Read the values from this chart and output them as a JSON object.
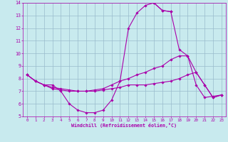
{
  "background_color": "#c8eaee",
  "line_color": "#aa00aa",
  "grid_color": "#99bbcc",
  "xlabel": "Windchill (Refroidissement éolien,°C)",
  "xlim_min": -0.5,
  "xlim_max": 23.5,
  "ylim_min": 5,
  "ylim_max": 14,
  "yticks": [
    5,
    6,
    7,
    8,
    9,
    10,
    11,
    12,
    13,
    14
  ],
  "xticks": [
    0,
    1,
    2,
    3,
    4,
    5,
    6,
    7,
    8,
    9,
    10,
    11,
    12,
    13,
    14,
    15,
    16,
    17,
    18,
    19,
    20,
    21,
    22,
    23
  ],
  "series": [
    {
      "x": [
        0,
        1,
        2,
        3,
        4,
        5,
        6,
        7,
        8,
        9,
        10,
        11,
        12,
        13,
        14,
        15,
        16,
        17,
        18,
        19,
        20,
        21,
        22,
        23
      ],
      "y": [
        8.3,
        7.8,
        7.5,
        7.5,
        7.0,
        6.0,
        5.5,
        5.3,
        5.3,
        5.5,
        6.3,
        7.8,
        12.0,
        13.2,
        13.8,
        14.0,
        13.4,
        13.3,
        null,
        null,
        null,
        null,
        null,
        null
      ]
    },
    {
      "x": [
        15,
        16,
        17,
        18,
        19,
        20,
        21,
        22,
        23
      ],
      "y": [
        14.0,
        13.4,
        13.3,
        10.3,
        9.8,
        7.5,
        6.5,
        6.6,
        6.7
      ]
    },
    {
      "x": [
        0,
        1,
        2,
        3,
        4,
        5,
        6,
        7,
        8,
        9,
        10,
        11,
        12,
        13,
        14,
        15,
        16,
        17,
        18,
        19,
        20,
        21,
        22,
        23
      ],
      "y": [
        8.3,
        7.8,
        7.5,
        7.2,
        7.1,
        7.0,
        7.0,
        7.0,
        7.1,
        7.2,
        7.5,
        7.8,
        8.0,
        8.3,
        8.5,
        8.8,
        9.0,
        9.5,
        9.8,
        9.8,
        8.5,
        7.5,
        6.5,
        6.7
      ]
    },
    {
      "x": [
        0,
        1,
        2,
        3,
        4,
        5,
        6,
        7,
        8,
        9,
        10,
        11,
        12,
        13,
        14,
        15,
        16,
        17,
        18,
        19,
        20,
        21,
        22,
        23
      ],
      "y": [
        8.3,
        7.8,
        7.5,
        7.3,
        7.2,
        7.1,
        7.0,
        7.0,
        7.0,
        7.1,
        7.2,
        7.3,
        7.5,
        7.5,
        7.5,
        7.6,
        7.7,
        7.8,
        8.0,
        8.3,
        8.5,
        7.5,
        6.5,
        6.7
      ]
    }
  ]
}
